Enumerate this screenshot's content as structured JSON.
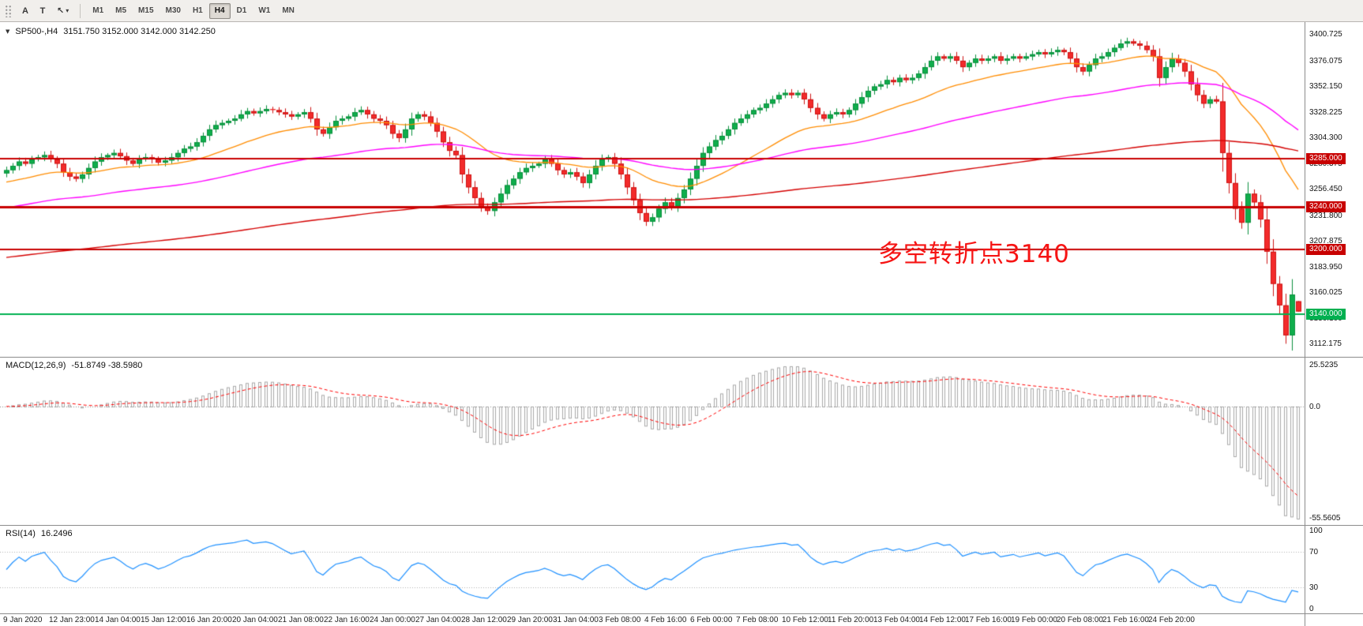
{
  "toolbar": {
    "buttons": [
      "A",
      "T"
    ],
    "cursor_icon": "↖",
    "caret": "▾",
    "timeframes": [
      "M1",
      "M5",
      "M15",
      "M30",
      "H1",
      "H4",
      "D1",
      "W1",
      "MN"
    ],
    "active_timeframe": "H4"
  },
  "chart": {
    "title": "SP500-,H4",
    "ohlc": "3151.750 3152.000 3142.000 3142.250",
    "collapse_icon": "▼",
    "annotation": {
      "text": "多空转折点3140",
      "color": "#f61414"
    }
  },
  "macd": {
    "label": "MACD(12,26,9)",
    "values": "-51.8749 -38.5980"
  },
  "rsi": {
    "label": "RSI(14)",
    "value": "16.2496"
  },
  "colors": {
    "up_fill": "#0fae4c",
    "up_stroke": "#0a8f3c",
    "down_fill": "#f32b2b",
    "down_stroke": "#cd1414",
    "macd_hist": "#a8a8a8",
    "macd_signal": "#ff0000",
    "rsi_line": "#1e90ff",
    "axis_text": "#141414"
  },
  "chart_data": {
    "type": "candlestick",
    "title": "SP500-,H4",
    "symbol": "SP500-",
    "timeframe": "H4",
    "ohlc_current": {
      "open": 3151.75,
      "high": 3152.0,
      "low": 3142.0,
      "close": 3142.25
    },
    "price_range": {
      "min": 3100,
      "max": 3412
    },
    "y_axis_labels": [
      "3400.725",
      "3376.075",
      "3352.150",
      "3328.225",
      "3304.300",
      "3280.375",
      "3256.450",
      "3231.800",
      "3207.875",
      "3183.950",
      "3160.025",
      "3136.100",
      "3112.175"
    ],
    "x_axis_labels": [
      "9 Jan 2020",
      "12 Jan 23:00",
      "14 Jan 04:00",
      "15 Jan 12:00",
      "16 Jan 20:00",
      "20 Jan 04:00",
      "21 Jan 08:00",
      "22 Jan 16:00",
      "24 Jan 00:00",
      "27 Jan 04:00",
      "28 Jan 12:00",
      "29 Jan 20:00",
      "31 Jan 04:00",
      "3 Feb 08:00",
      "4 Feb 16:00",
      "6 Feb 00:00",
      "7 Feb 08:00",
      "10 Feb 12:00",
      "11 Feb 20:00",
      "13 Feb 04:00",
      "14 Feb 12:00",
      "17 Feb 16:00",
      "19 Feb 00:00",
      "20 Feb 08:00",
      "21 Feb 16:00",
      "24 Feb 20:00"
    ],
    "first_open": 3271,
    "crash_low": 3112.175,
    "closes": [
      3274,
      3278,
      3282,
      3280,
      3284,
      3286,
      3288,
      3284,
      3280,
      3272,
      3268,
      3266,
      3270,
      3276,
      3282,
      3286,
      3288,
      3290,
      3287,
      3283,
      3280,
      3284,
      3286,
      3284,
      3281,
      3283,
      3286,
      3290,
      3294,
      3296,
      3300,
      3306,
      3312,
      3316,
      3318,
      3320,
      3322,
      3326,
      3329,
      3327,
      3329,
      3331,
      3330,
      3328,
      3326,
      3324,
      3326,
      3328,
      3322,
      3312,
      3308,
      3314,
      3320,
      3322,
      3324,
      3328,
      3330,
      3326,
      3322,
      3320,
      3316,
      3308,
      3304,
      3312,
      3322,
      3326,
      3324,
      3318,
      3310,
      3300,
      3292,
      3288,
      3270,
      3258,
      3248,
      3240,
      3236,
      3244,
      3252,
      3260,
      3266,
      3272,
      3276,
      3278,
      3280,
      3284,
      3280,
      3274,
      3270,
      3272,
      3268,
      3262,
      3270,
      3278,
      3284,
      3286,
      3280,
      3270,
      3258,
      3246,
      3234,
      3226,
      3230,
      3238,
      3244,
      3240,
      3248,
      3256,
      3266,
      3278,
      3290,
      3296,
      3302,
      3306,
      3312,
      3318,
      3322,
      3326,
      3330,
      3332,
      3336,
      3340,
      3344,
      3346,
      3344,
      3346,
      3340,
      3332,
      3326,
      3322,
      3326,
      3328,
      3326,
      3330,
      3336,
      3342,
      3348,
      3352,
      3354,
      3358,
      3356,
      3360,
      3358,
      3360,
      3364,
      3370,
      3376,
      3380,
      3378,
      3380,
      3376,
      3370,
      3374,
      3378,
      3376,
      3378,
      3380,
      3376,
      3378,
      3380,
      3378,
      3380,
      3382,
      3384,
      3382,
      3384,
      3386,
      3384,
      3378,
      3370,
      3366,
      3372,
      3378,
      3380,
      3384,
      3388,
      3392,
      3394,
      3392,
      3390,
      3386,
      3380,
      3360,
      3370,
      3378,
      3374,
      3366,
      3354,
      3344,
      3336,
      3340,
      3338,
      3290,
      3262,
      3238,
      3225,
      3252,
      3244,
      3228,
      3198,
      3168,
      3148,
      3120,
      3158
    ],
    "overlays": [
      {
        "name": "ma-fast",
        "period": 26,
        "seed": 3262,
        "color": "#ff8c00",
        "width": 1.3
      },
      {
        "name": "ma-mid",
        "period": 80,
        "seed": 3238,
        "color": "#ff00ff",
        "width": 1.4
      },
      {
        "name": "ma-slow",
        "period": 250,
        "seed": 3192,
        "color": "#d40000",
        "width": 1.4
      }
    ],
    "hlines": [
      {
        "price": 3285,
        "label": "3285.000",
        "color": "#c80000",
        "width": 2
      },
      {
        "price": 3240,
        "label": "3240.000",
        "color": "#c80000",
        "width": 3
      },
      {
        "price": 3200,
        "label": "3200.000",
        "color": "#c80000",
        "width": 2
      },
      {
        "price": 3140,
        "label": "3140.000",
        "color": "#00b050",
        "width": 2
      }
    ],
    "macd": {
      "type": "macd_histogram",
      "params": [
        12,
        26,
        9
      ],
      "current_main": -51.8749,
      "current_signal": -38.598,
      "y_axis_labels": [
        "25.5235",
        "0.0",
        "-55.5605"
      ]
    },
    "rsi": {
      "type": "line",
      "period": 14,
      "current": 16.2496,
      "levels": [
        70,
        30
      ],
      "y_axis_labels": [
        "100",
        "70",
        "30",
        "0"
      ]
    }
  }
}
